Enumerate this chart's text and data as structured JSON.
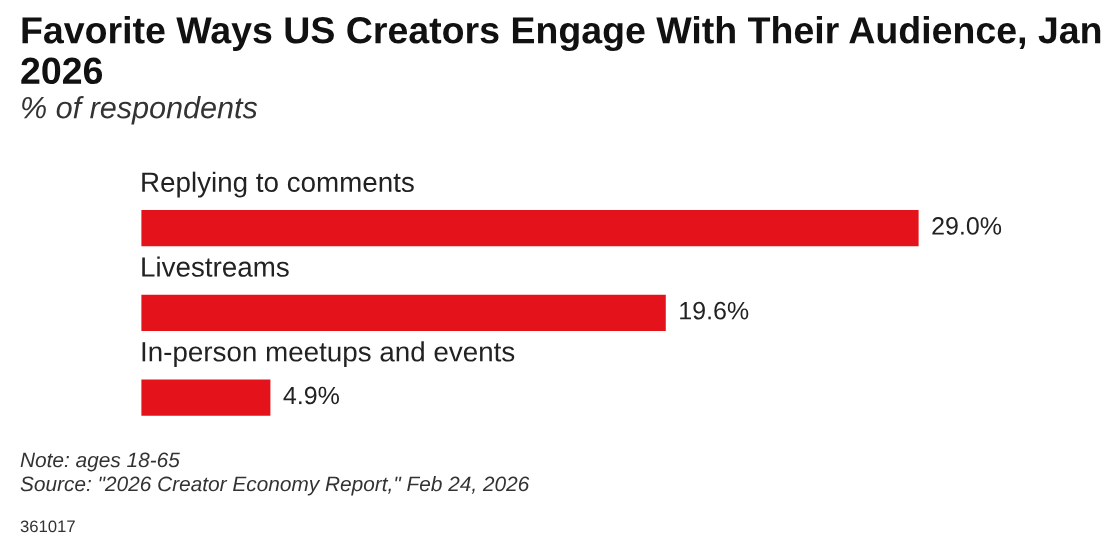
{
  "chart_data": {
    "type": "bar",
    "orientation": "horizontal",
    "title": "Favorite Ways US Creators Engage With Their Audience, Jan 2026",
    "subtitle": "% of respondents",
    "categories": [
      "Replying to comments",
      "Livestreams",
      "In-person meetups and events"
    ],
    "values": [
      29.0,
      19.6,
      4.9
    ],
    "value_labels": [
      "29.0%",
      "19.6%",
      "4.9%"
    ],
    "color": "#e4131b",
    "annotations": [
      "Note: ages 18-65",
      "Source: \"2026 Creator Economy Report,\" Feb 24, 2026",
      "361017"
    ]
  }
}
